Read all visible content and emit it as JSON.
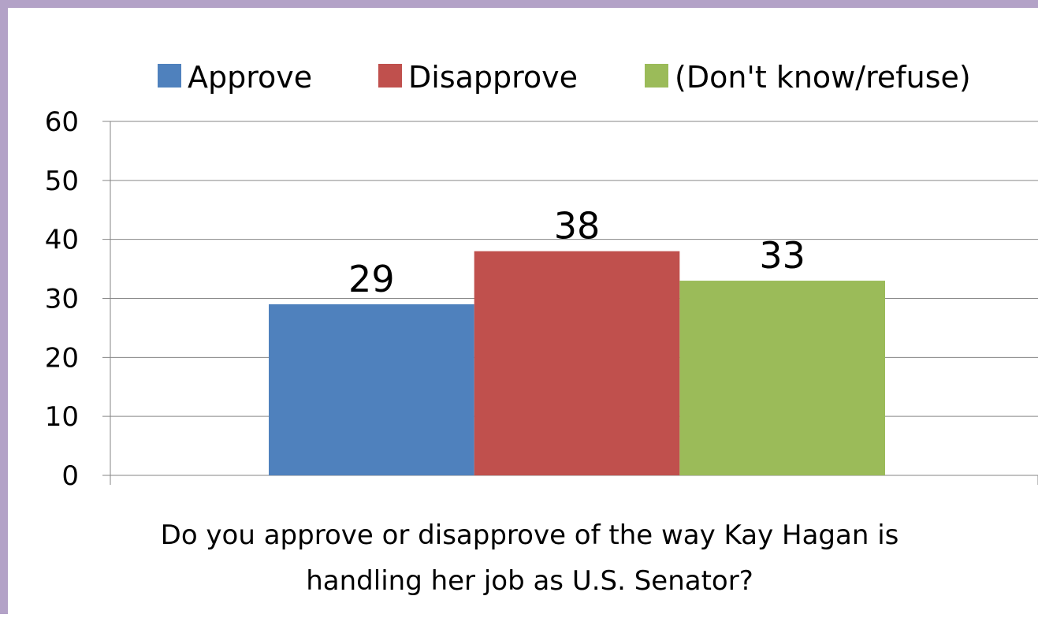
{
  "chart_data": {
    "type": "bar",
    "title": "",
    "xlabel": "Do you approve or disapprove of the way Kay Hagan is handling her job as U.S. Senator?",
    "xlabel_lines": [
      "Do you approve or disapprove of the way Kay Hagan is",
      "handling her job as U.S. Senator?"
    ],
    "ylabel": "",
    "ylim": [
      0,
      60
    ],
    "yticks": [
      0,
      10,
      20,
      30,
      40,
      50,
      60
    ],
    "grid": true,
    "legend_position": "top",
    "categories": [
      ""
    ],
    "series": [
      {
        "name": "Approve",
        "values": [
          29
        ],
        "color": "#4f81bd"
      },
      {
        "name": "Disapprove",
        "values": [
          38
        ],
        "color": "#c0504d"
      },
      {
        "name": "(Don't know/refuse)",
        "values": [
          33
        ],
        "color": "#9bbb59"
      }
    ]
  },
  "colors": {
    "frame": "#b3a2c7",
    "gridline": "#868686"
  }
}
